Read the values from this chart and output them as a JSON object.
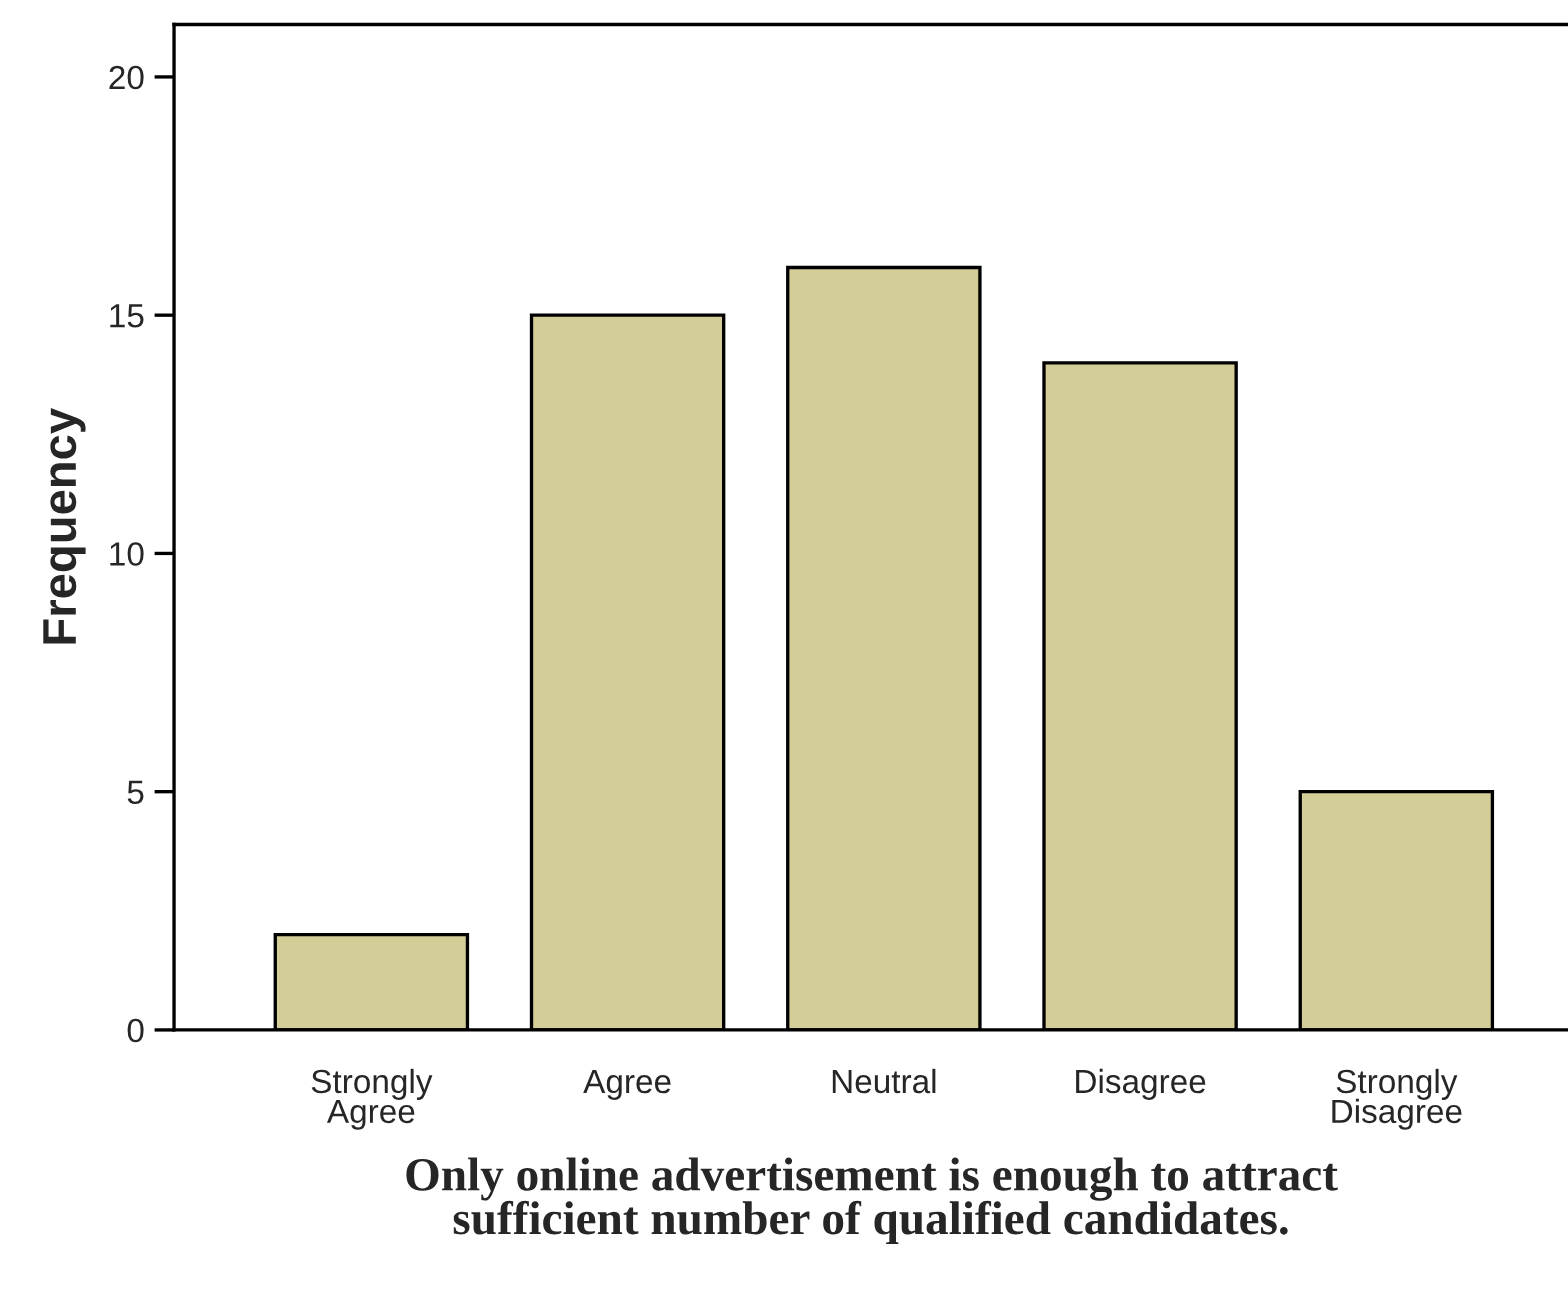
{
  "chart_data": {
    "type": "bar",
    "xlabel": "Only online advertisement is enough to attract\nsufficient number of qualified candidates.",
    "ylabel": "Frequency",
    "categories": [
      "Strongly\nAgree",
      "Agree",
      "Neutral",
      "Disagree",
      "Strongly\nDisagree"
    ],
    "values": [
      2,
      15,
      16,
      14,
      5
    ],
    "color": "#d3ce97",
    "ylim": [
      0,
      21.1
    ],
    "yticks": [
      0,
      5,
      10,
      15,
      20
    ],
    "grid": false,
    "legend": false
  }
}
